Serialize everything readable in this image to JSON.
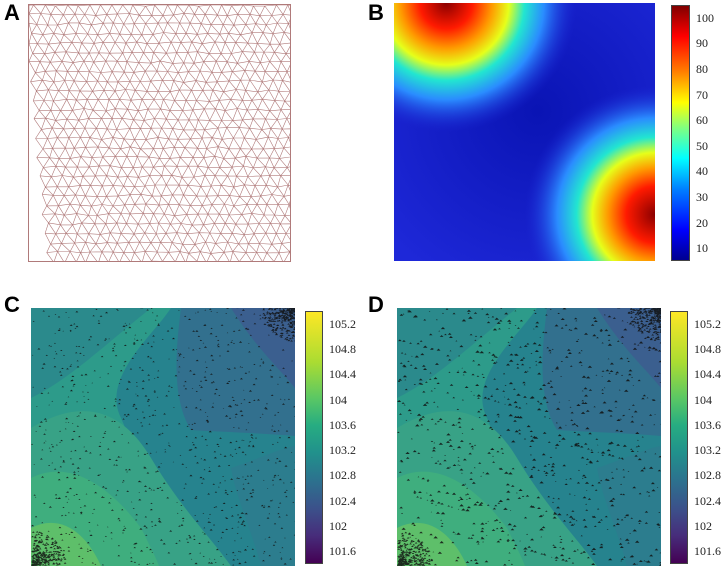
{
  "panels": {
    "a": {
      "label": "A"
    },
    "b": {
      "label": "B"
    },
    "c": {
      "label": "C"
    },
    "d": {
      "label": "D"
    }
  },
  "chart_data": [
    {
      "panel": "A",
      "type": "mesh",
      "colors": {
        "edge": "#b07a7a",
        "background": "#ffffff"
      }
    },
    {
      "panel": "B",
      "type": "heatmap",
      "colorbar": {
        "ticks": [
          "10",
          "20",
          "30",
          "40",
          "50",
          "60",
          "70",
          "80",
          "90",
          "100"
        ],
        "range": [
          5,
          105
        ],
        "colormap": "jet"
      },
      "hotspots": [
        "top-left corner",
        "bottom-right corner"
      ]
    },
    {
      "panel": "C",
      "type": "heatmap",
      "colorbar": {
        "ticks": [
          "101.6",
          "102",
          "102.4",
          "102.8",
          "103.2",
          "103.6",
          "104",
          "104.4",
          "104.8",
          "105.2"
        ],
        "range": [
          101.4,
          105.4
        ],
        "colormap": "viridis"
      }
    },
    {
      "panel": "D",
      "type": "heatmap",
      "colorbar": {
        "ticks": [
          "101.6",
          "102",
          "102.4",
          "102.8",
          "103.2",
          "103.6",
          "104",
          "104.4",
          "104.8",
          "105.2"
        ],
        "range": [
          101.4,
          105.4
        ],
        "colormap": "viridis"
      }
    }
  ]
}
